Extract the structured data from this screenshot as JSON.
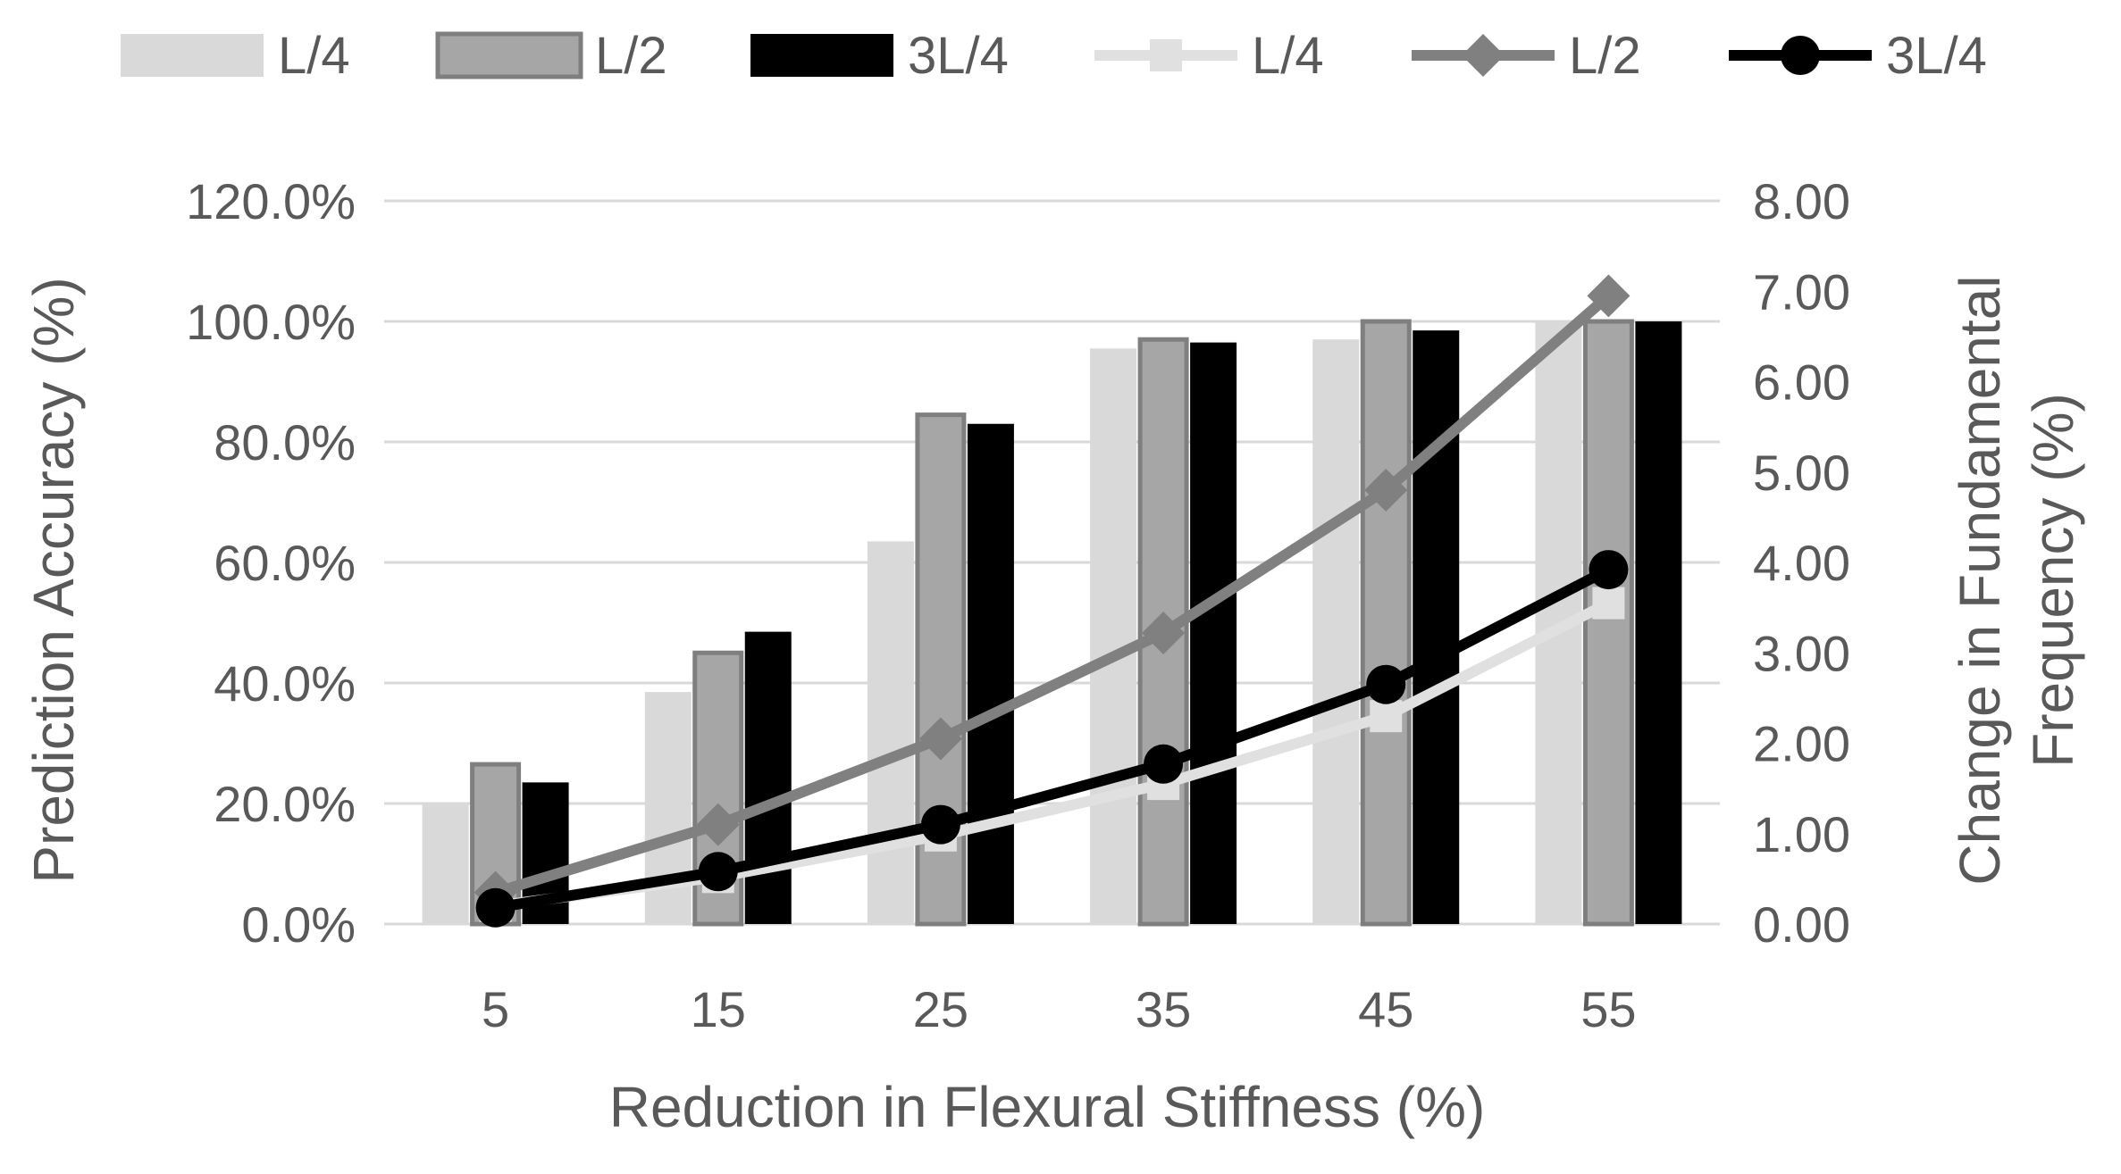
{
  "chart_data": {
    "type": "bar+line",
    "categories": [
      "5",
      "15",
      "25",
      "35",
      "45",
      "55"
    ],
    "xlabel": "Reduction in Flexural Stiffness (%)",
    "ylabel_left": "Prediction Accuracy (%)",
    "ylabel_right_line1": "Change in Fundamental",
    "ylabel_right_line2": "Frequency (%)",
    "ylim_left": [
      0,
      1.2
    ],
    "ylim_right": [
      0,
      8
    ],
    "yticks_left": [
      "0.0%",
      "20.0%",
      "40.0%",
      "60.0%",
      "80.0%",
      "100.0%",
      "120.0%"
    ],
    "yticks_right": [
      "0.00",
      "1.00",
      "2.00",
      "3.00",
      "4.00",
      "5.00",
      "6.00",
      "7.00",
      "8.00"
    ],
    "grid": true,
    "legend_position": "top",
    "bar_series": [
      {
        "name": "L/4",
        "axis": "left",
        "color": "#d9d9d9",
        "values": [
          0.2,
          0.385,
          0.635,
          0.955,
          0.97,
          1.0
        ]
      },
      {
        "name": "L/2",
        "axis": "left",
        "color": "#a6a6a6",
        "edge": "#7f7f7f",
        "values": [
          0.265,
          0.45,
          0.845,
          0.97,
          1.0,
          1.0
        ]
      },
      {
        "name": "3L/4",
        "axis": "left",
        "color": "#000000",
        "values": [
          0.235,
          0.485,
          0.83,
          0.965,
          0.985,
          1.0
        ]
      }
    ],
    "line_series": [
      {
        "name": "L/4",
        "axis": "right",
        "color": "#e0e0e0",
        "marker": "square",
        "values": [
          0.2,
          0.52,
          0.98,
          1.55,
          2.3,
          3.55
        ]
      },
      {
        "name": "L/2",
        "axis": "right",
        "color": "#808080",
        "marker": "diamond",
        "values": [
          0.35,
          1.1,
          2.05,
          3.22,
          4.8,
          6.95
        ]
      },
      {
        "name": "3L/4",
        "axis": "right",
        "color": "#000000",
        "marker": "circle",
        "values": [
          0.18,
          0.58,
          1.1,
          1.77,
          2.65,
          3.92
        ]
      }
    ]
  }
}
